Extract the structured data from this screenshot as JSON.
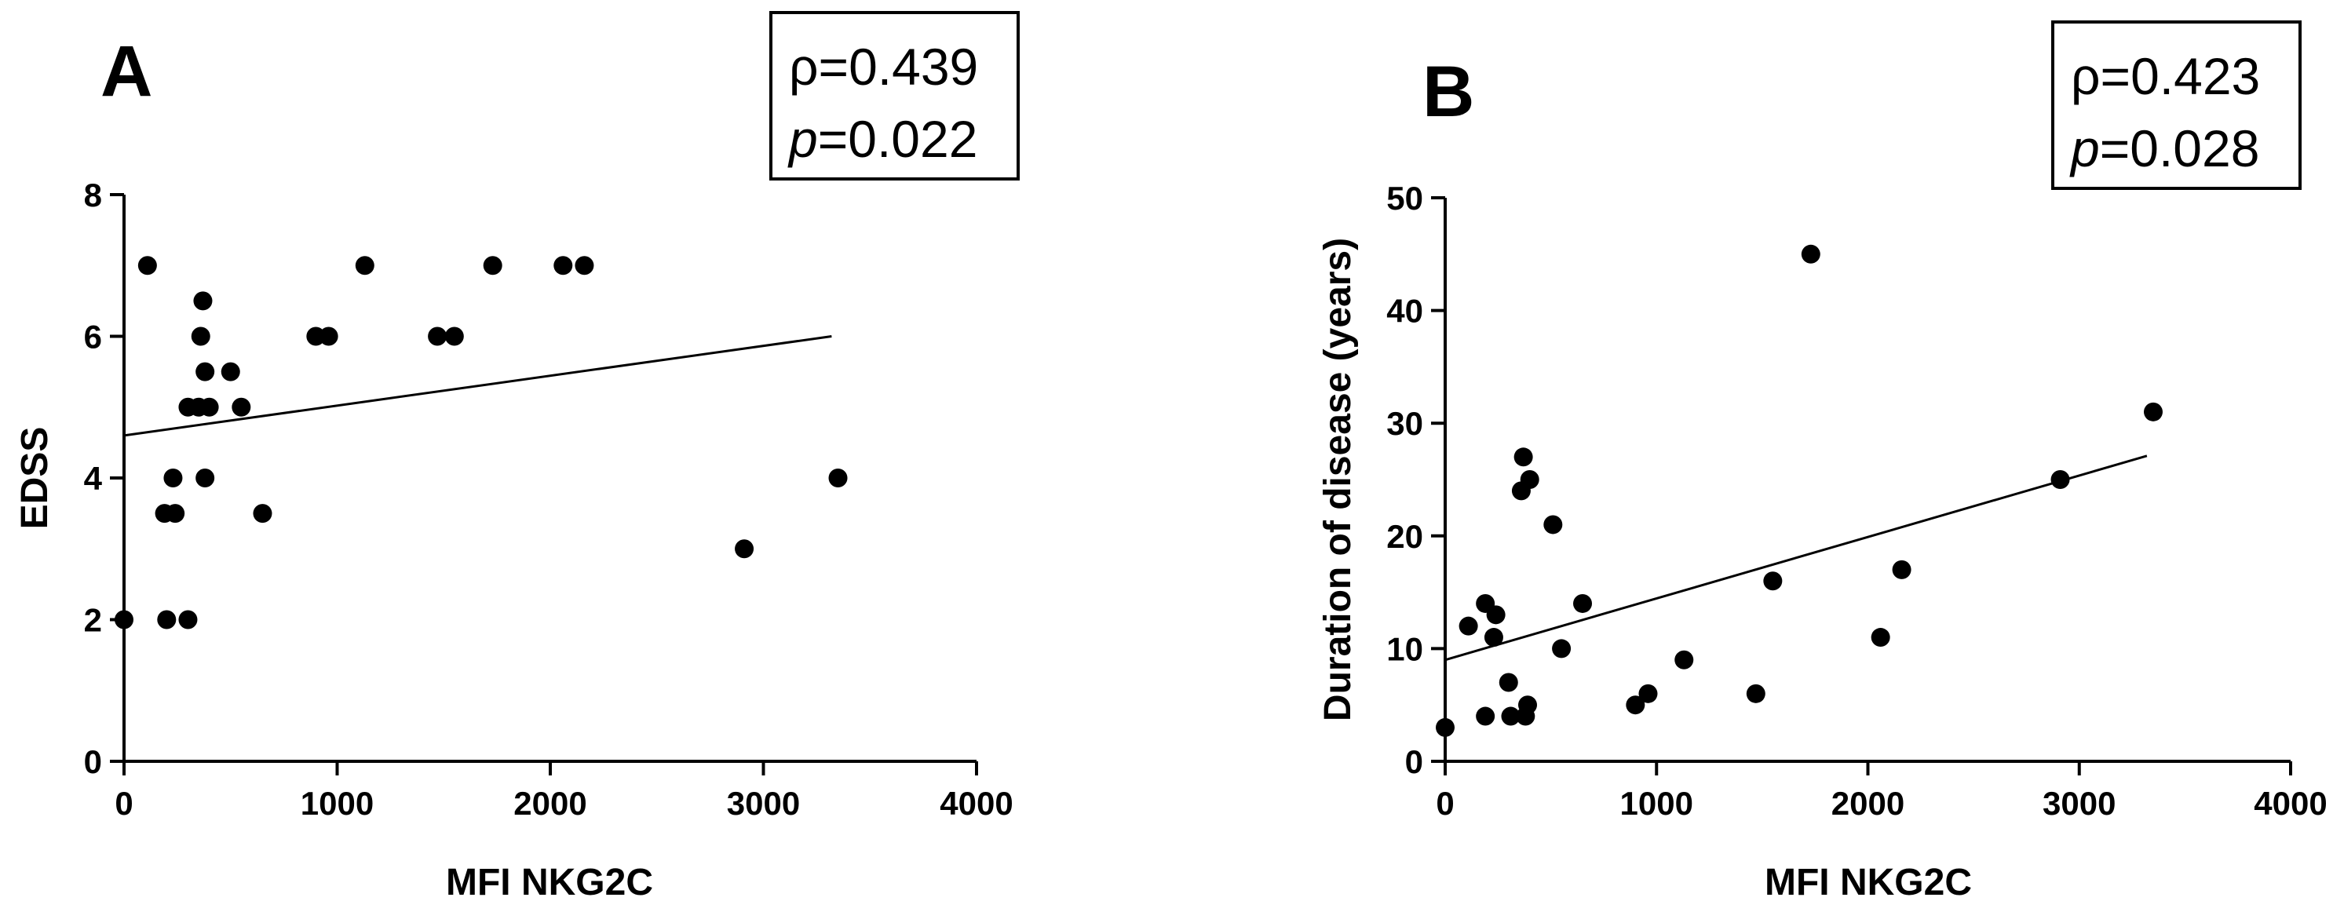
{
  "chart_data": [
    {
      "type": "scatter",
      "panel_label": "A",
      "xlabel": "MFI NKG2C",
      "ylabel": "EDSS",
      "xlim": [
        0,
        4000
      ],
      "ylim": [
        0,
        8
      ],
      "x_ticks": [
        0,
        1000,
        2000,
        3000,
        4000
      ],
      "y_ticks": [
        0,
        2,
        4,
        6,
        8
      ],
      "stats": {
        "rho_symbol": "ρ",
        "rho_value": "=0.439",
        "p_symbol": "p",
        "p_value": "=0.022"
      },
      "points": [
        {
          "x": 0,
          "y": 2
        },
        {
          "x": 110,
          "y": 7
        },
        {
          "x": 190,
          "y": 3.5
        },
        {
          "x": 200,
          "y": 2
        },
        {
          "x": 230,
          "y": 4
        },
        {
          "x": 240,
          "y": 3.5
        },
        {
          "x": 300,
          "y": 5
        },
        {
          "x": 300,
          "y": 2
        },
        {
          "x": 350,
          "y": 5
        },
        {
          "x": 360,
          "y": 6
        },
        {
          "x": 370,
          "y": 6.5
        },
        {
          "x": 380,
          "y": 4
        },
        {
          "x": 380,
          "y": 5.5
        },
        {
          "x": 400,
          "y": 5
        },
        {
          "x": 500,
          "y": 5.5
        },
        {
          "x": 550,
          "y": 5
        },
        {
          "x": 650,
          "y": 3.5
        },
        {
          "x": 900,
          "y": 6
        },
        {
          "x": 960,
          "y": 6
        },
        {
          "x": 1130,
          "y": 7
        },
        {
          "x": 1470,
          "y": 6
        },
        {
          "x": 1550,
          "y": 6
        },
        {
          "x": 1730,
          "y": 7
        },
        {
          "x": 2060,
          "y": 7
        },
        {
          "x": 2160,
          "y": 7
        },
        {
          "x": 2910,
          "y": 3
        },
        {
          "x": 3350,
          "y": 4
        }
      ],
      "fit_line": {
        "x": [
          0,
          3320
        ],
        "y": [
          4.6,
          6.0
        ]
      }
    },
    {
      "type": "scatter",
      "panel_label": "B",
      "xlabel": "MFI NKG2C",
      "ylabel": "Duration of disease (years)",
      "xlim": [
        0,
        4000
      ],
      "ylim": [
        0,
        50
      ],
      "x_ticks": [
        0,
        1000,
        2000,
        3000,
        4000
      ],
      "y_ticks": [
        0,
        10,
        20,
        30,
        40,
        50
      ],
      "stats": {
        "rho_symbol": "ρ",
        "rho_value": "=0.423",
        "p_symbol": "p",
        "p_value": "=0.028"
      },
      "points": [
        {
          "x": 0,
          "y": 3
        },
        {
          "x": 110,
          "y": 12
        },
        {
          "x": 190,
          "y": 14
        },
        {
          "x": 190,
          "y": 4
        },
        {
          "x": 230,
          "y": 11
        },
        {
          "x": 240,
          "y": 13
        },
        {
          "x": 300,
          "y": 7
        },
        {
          "x": 310,
          "y": 4
        },
        {
          "x": 360,
          "y": 24
        },
        {
          "x": 370,
          "y": 27
        },
        {
          "x": 380,
          "y": 4
        },
        {
          "x": 390,
          "y": 5
        },
        {
          "x": 400,
          "y": 25
        },
        {
          "x": 510,
          "y": 21
        },
        {
          "x": 550,
          "y": 10
        },
        {
          "x": 650,
          "y": 14
        },
        {
          "x": 900,
          "y": 5
        },
        {
          "x": 960,
          "y": 6
        },
        {
          "x": 1130,
          "y": 9
        },
        {
          "x": 1470,
          "y": 6
        },
        {
          "x": 1550,
          "y": 16
        },
        {
          "x": 1730,
          "y": 45
        },
        {
          "x": 2060,
          "y": 11
        },
        {
          "x": 2160,
          "y": 17
        },
        {
          "x": 2910,
          "y": 25
        },
        {
          "x": 3350,
          "y": 31
        }
      ],
      "fit_line": {
        "x": [
          0,
          3320
        ],
        "y": [
          9.0,
          27.1
        ]
      }
    }
  ]
}
